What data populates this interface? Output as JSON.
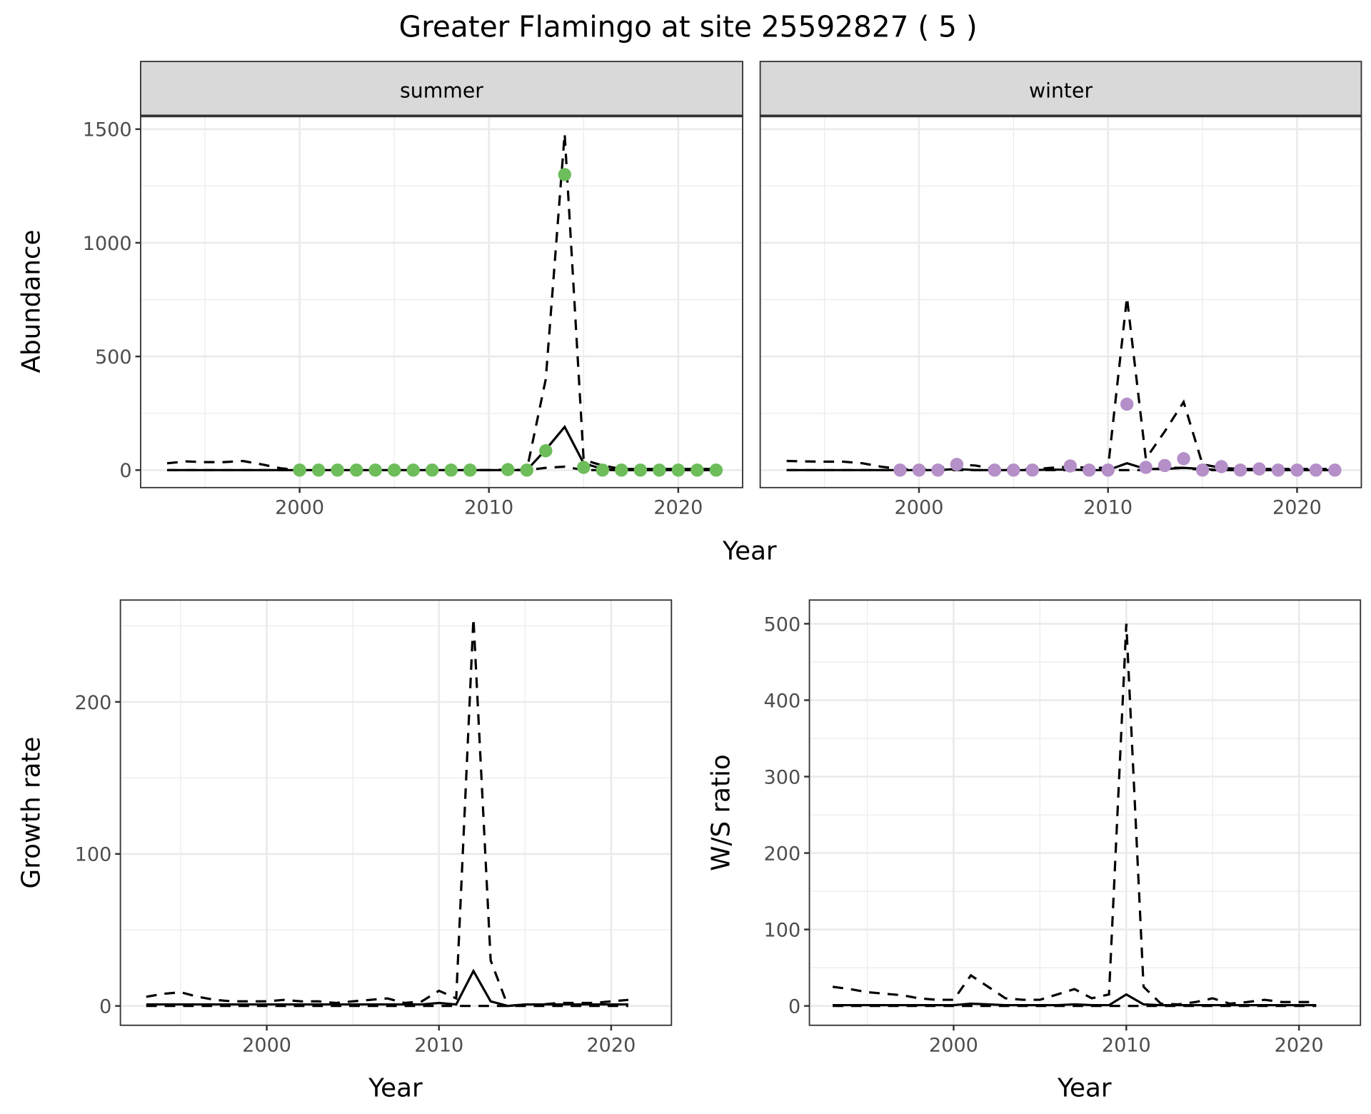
{
  "title": "Greater Flamingo at site 25592827 ( 5 )",
  "colors": {
    "summer_points": "#6dbd5b",
    "winter_points": "#b48fc8",
    "lines": "#000000",
    "strip_bg": "#d9d9d9",
    "grid": "#ebebeb"
  },
  "chart_data": [
    {
      "type": "line",
      "facet": "summer",
      "xlabel": "Year",
      "ylabel": "Abundance",
      "xlim": [
        1991.6,
        2023.4
      ],
      "ylim": [
        -77,
        1558
      ],
      "xticks": [
        2000,
        2010,
        2020
      ],
      "yticks": [
        0,
        500,
        1000,
        1500
      ],
      "grid": true,
      "points": {
        "x": [
          2000,
          2001,
          2002,
          2003,
          2004,
          2005,
          2006,
          2007,
          2008,
          2009,
          2011,
          2012,
          2013,
          2014,
          2015,
          2016,
          2017,
          2018,
          2019,
          2020,
          2021,
          2022
        ],
        "y": [
          0,
          0,
          0,
          0,
          0,
          0,
          0,
          0,
          0,
          0,
          2,
          0,
          85,
          1300,
          12,
          0,
          0,
          0,
          0,
          0,
          0,
          0
        ]
      },
      "lines": [
        {
          "style": "solid",
          "x": [
            1993,
            1994,
            1995,
            1996,
            1997,
            1998,
            1999,
            2000,
            2001,
            2002,
            2003,
            2004,
            2005,
            2006,
            2007,
            2008,
            2009,
            2010,
            2011,
            2012,
            2013,
            2014,
            2015,
            2016,
            2017,
            2018,
            2019,
            2020,
            2021,
            2022
          ],
          "y": [
            0,
            0,
            0,
            0,
            0,
            0,
            0,
            0,
            0,
            0,
            0,
            0,
            0,
            0,
            0,
            0,
            0,
            0,
            0,
            0,
            90,
            190,
            30,
            5,
            0,
            0,
            0,
            0,
            0,
            0
          ]
        },
        {
          "style": "dashed",
          "x": [
            1993,
            1994,
            1995,
            1996,
            1997,
            1998,
            1999,
            2000,
            2001,
            2002,
            2003,
            2004,
            2005,
            2006,
            2007,
            2008,
            2009,
            2010,
            2011,
            2012,
            2013,
            2014,
            2015,
            2016,
            2017,
            2018,
            2019,
            2020,
            2021,
            2022
          ],
          "y": [
            30,
            38,
            35,
            35,
            40,
            25,
            8,
            0,
            0,
            0,
            0,
            0,
            0,
            0,
            0,
            0,
            0,
            0,
            2,
            0,
            400,
            1480,
            45,
            20,
            5,
            5,
            5,
            5,
            5,
            5
          ]
        },
        {
          "style": "dashed",
          "x": [
            1993,
            1994,
            1995,
            1996,
            1997,
            1998,
            1999,
            2000,
            2001,
            2002,
            2003,
            2004,
            2005,
            2006,
            2007,
            2008,
            2009,
            2010,
            2011,
            2012,
            2013,
            2014,
            2015,
            2016,
            2017,
            2018,
            2019,
            2020,
            2021,
            2022
          ],
          "y": [
            0,
            0,
            0,
            0,
            0,
            0,
            0,
            0,
            0,
            0,
            0,
            0,
            0,
            0,
            0,
            0,
            0,
            0,
            0,
            0,
            10,
            15,
            0,
            0,
            0,
            0,
            0,
            0,
            0,
            0
          ]
        }
      ]
    },
    {
      "type": "line",
      "facet": "winter",
      "xlabel": "Year",
      "ylabel": "",
      "xlim": [
        1991.6,
        2023.4
      ],
      "ylim": [
        -77,
        1558
      ],
      "xticks": [
        2000,
        2010,
        2020
      ],
      "yticks": [
        0,
        500,
        1000,
        1500
      ],
      "grid": true,
      "points": {
        "x": [
          1999,
          2000,
          2001,
          2002,
          2004,
          2005,
          2006,
          2008,
          2009,
          2010,
          2011,
          2012,
          2013,
          2014,
          2015,
          2016,
          2017,
          2018,
          2019,
          2020,
          2021,
          2022
        ],
        "y": [
          0,
          0,
          0,
          25,
          0,
          0,
          0,
          18,
          0,
          0,
          290,
          12,
          20,
          50,
          0,
          15,
          0,
          5,
          0,
          0,
          0,
          0
        ]
      },
      "lines": [
        {
          "style": "solid",
          "x": [
            1993,
            1994,
            1995,
            1996,
            1997,
            1998,
            1999,
            2000,
            2001,
            2002,
            2003,
            2004,
            2005,
            2006,
            2007,
            2008,
            2009,
            2010,
            2011,
            2012,
            2013,
            2014,
            2015,
            2016,
            2017,
            2018,
            2019,
            2020,
            2021,
            2022
          ],
          "y": [
            0,
            0,
            0,
            0,
            0,
            0,
            0,
            0,
            0,
            5,
            0,
            0,
            0,
            0,
            2,
            2,
            0,
            0,
            30,
            5,
            5,
            10,
            5,
            0,
            0,
            0,
            0,
            0,
            0,
            0
          ]
        },
        {
          "style": "dashed",
          "x": [
            1993,
            1994,
            1995,
            1996,
            1997,
            1998,
            1999,
            2000,
            2001,
            2002,
            2003,
            2004,
            2005,
            2006,
            2007,
            2008,
            2009,
            2010,
            2011,
            2012,
            2013,
            2014,
            2015,
            2016,
            2017,
            2018,
            2019,
            2020,
            2021,
            2022
          ],
          "y": [
            40,
            38,
            37,
            37,
            30,
            15,
            5,
            3,
            5,
            25,
            20,
            5,
            3,
            3,
            10,
            15,
            10,
            10,
            760,
            50,
            170,
            300,
            25,
            10,
            5,
            5,
            5,
            5,
            5,
            5
          ]
        },
        {
          "style": "dashed",
          "x": [
            1993,
            1994,
            1995,
            1996,
            1997,
            1998,
            1999,
            2000,
            2001,
            2002,
            2003,
            2004,
            2005,
            2006,
            2007,
            2008,
            2009,
            2010,
            2011,
            2012,
            2013,
            2014,
            2015,
            2016,
            2017,
            2018,
            2019,
            2020,
            2021,
            2022
          ],
          "y": [
            0,
            0,
            0,
            0,
            0,
            0,
            0,
            0,
            0,
            0,
            0,
            0,
            0,
            0,
            0,
            0,
            0,
            0,
            0,
            0,
            10,
            10,
            0,
            0,
            0,
            0,
            0,
            0,
            0,
            0
          ]
        }
      ]
    },
    {
      "type": "line",
      "facet": "",
      "xlabel": "Year",
      "ylabel": "Growth rate",
      "xlim": [
        1991.5,
        2023.5
      ],
      "ylim": [
        -12.7,
        267
      ],
      "xticks": [
        2000,
        2010,
        2020
      ],
      "yticks": [
        0,
        100,
        200
      ],
      "grid": true,
      "lines": [
        {
          "style": "solid",
          "x": [
            1993,
            1994,
            1995,
            1996,
            1997,
            1998,
            1999,
            2000,
            2001,
            2002,
            2003,
            2004,
            2005,
            2006,
            2007,
            2008,
            2009,
            2010,
            2011,
            2012,
            2013,
            2014,
            2015,
            2016,
            2017,
            2018,
            2019,
            2020,
            2021
          ],
          "y": [
            1,
            1,
            1,
            1,
            1,
            1,
            1,
            1,
            1,
            1,
            1,
            1,
            1,
            1,
            1,
            1,
            1,
            2,
            1,
            23,
            3,
            0,
            1,
            1,
            1,
            1,
            1,
            1,
            1
          ]
        },
        {
          "style": "dashed",
          "x": [
            1993,
            1994,
            1995,
            1996,
            1997,
            1998,
            1999,
            2000,
            2001,
            2002,
            2003,
            2004,
            2005,
            2006,
            2007,
            2008,
            2009,
            2010,
            2011,
            2012,
            2013,
            2014,
            2015,
            2016,
            2017,
            2018,
            2019,
            2020,
            2021
          ],
          "y": [
            6,
            8,
            9,
            6,
            4,
            3,
            3,
            3,
            4,
            3,
            3,
            2,
            3,
            4,
            5,
            2,
            3,
            10,
            5,
            255,
            30,
            0,
            1,
            1,
            2,
            2,
            2,
            3,
            4
          ]
        },
        {
          "style": "dashed",
          "x": [
            1993,
            1994,
            1995,
            1996,
            1997,
            1998,
            1999,
            2000,
            2001,
            2002,
            2003,
            2004,
            2005,
            2006,
            2007,
            2008,
            2009,
            2010,
            2011,
            2012,
            2013,
            2014,
            2015,
            2016,
            2017,
            2018,
            2019,
            2020,
            2021
          ],
          "y": [
            0,
            0,
            0,
            0,
            0,
            0,
            0,
            0,
            0,
            0,
            0,
            0,
            0,
            0,
            0,
            0,
            0,
            0,
            0,
            0,
            0,
            0,
            0,
            0,
            0,
            0,
            0,
            0,
            0
          ]
        }
      ]
    },
    {
      "type": "line",
      "facet": "",
      "xlabel": "Year",
      "ylabel": "W/S ratio",
      "xlim": [
        1991.65,
        2023.56
      ],
      "ylim": [
        -25.3,
        531
      ],
      "xticks": [
        2000,
        2010,
        2020
      ],
      "yticks": [
        0,
        100,
        200,
        300,
        400,
        500
      ],
      "grid": true,
      "lines": [
        {
          "style": "solid",
          "x": [
            1993,
            1994,
            1995,
            1996,
            1997,
            1998,
            1999,
            2000,
            2001,
            2002,
            2003,
            2004,
            2005,
            2006,
            2007,
            2008,
            2009,
            2010,
            2011,
            2012,
            2013,
            2014,
            2015,
            2016,
            2017,
            2018,
            2019,
            2020,
            2021
          ],
          "y": [
            1,
            1,
            1,
            1,
            1,
            1,
            1,
            1,
            3,
            2,
            1,
            1,
            1,
            1,
            2,
            1,
            1,
            15,
            2,
            1,
            1,
            1,
            1,
            1,
            1,
            1,
            1,
            1,
            1
          ]
        },
        {
          "style": "dashed",
          "x": [
            1993,
            1994,
            1995,
            1996,
            1997,
            1998,
            1999,
            2000,
            2001,
            2002,
            2003,
            2004,
            2005,
            2006,
            2007,
            2008,
            2009,
            2010,
            2011,
            2012,
            2013,
            2014,
            2015,
            2016,
            2017,
            2018,
            2019,
            2020,
            2021
          ],
          "y": [
            25,
            22,
            18,
            16,
            14,
            10,
            8,
            8,
            40,
            25,
            10,
            8,
            8,
            15,
            22,
            10,
            15,
            500,
            25,
            3,
            2,
            5,
            10,
            3,
            5,
            8,
            5,
            5,
            5
          ]
        },
        {
          "style": "dashed",
          "x": [
            1993,
            1994,
            1995,
            1996,
            1997,
            1998,
            1999,
            2000,
            2001,
            2002,
            2003,
            2004,
            2005,
            2006,
            2007,
            2008,
            2009,
            2010,
            2011,
            2012,
            2013,
            2014,
            2015,
            2016,
            2017,
            2018,
            2019,
            2020,
            2021
          ],
          "y": [
            0,
            0,
            0,
            0,
            0,
            0,
            0,
            0,
            0,
            0,
            0,
            0,
            0,
            0,
            0,
            0,
            0,
            0,
            0,
            0,
            0,
            0,
            0,
            0,
            0,
            0,
            0,
            0,
            0
          ]
        }
      ]
    }
  ]
}
